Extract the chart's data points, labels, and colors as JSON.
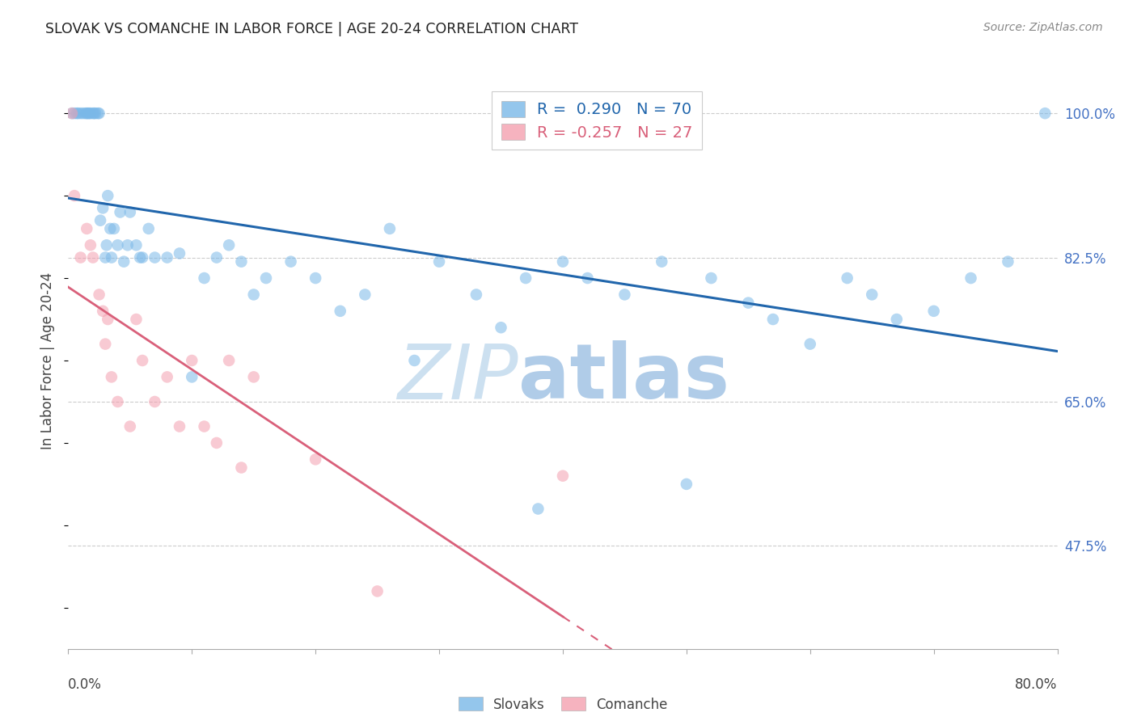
{
  "title": "SLOVAK VS COMANCHE IN LABOR FORCE | AGE 20-24 CORRELATION CHART",
  "source": "Source: ZipAtlas.com",
  "ylabel": "In Labor Force | Age 20-24",
  "yticks": [
    47.5,
    65.0,
    82.5,
    100.0
  ],
  "legend_blue_R": "0.290",
  "legend_blue_N": "70",
  "legend_pink_R": "-0.257",
  "legend_pink_N": "27",
  "legend_label_blue": "Slovaks",
  "legend_label_pink": "Comanche",
  "blue_color": "#7ab8e8",
  "pink_color": "#f4a0b0",
  "blue_line_color": "#2166ac",
  "pink_line_color": "#d9607a",
  "background_color": "#ffffff",
  "xmin": 0.0,
  "xmax": 80.0,
  "ymin": 35.0,
  "ymax": 105.0,
  "blue_x": [
    0.3,
    0.5,
    0.7,
    0.8,
    1.0,
    1.2,
    1.4,
    1.5,
    1.6,
    1.7,
    1.8,
    2.0,
    2.1,
    2.2,
    2.4,
    2.5,
    2.6,
    2.8,
    3.0,
    3.1,
    3.2,
    3.4,
    3.5,
    3.7,
    4.0,
    4.2,
    4.5,
    4.8,
    5.0,
    5.5,
    5.8,
    6.0,
    6.5,
    7.0,
    8.0,
    9.0,
    10.0,
    11.0,
    12.0,
    13.0,
    14.0,
    15.0,
    16.0,
    18.0,
    20.0,
    22.0,
    24.0,
    26.0,
    28.0,
    30.0,
    33.0,
    35.0,
    37.0,
    38.0,
    40.0,
    42.0,
    45.0,
    48.0,
    50.0,
    52.0,
    55.0,
    57.0,
    60.0,
    63.0,
    65.0,
    67.0,
    70.0,
    73.0,
    76.0,
    79.0
  ],
  "blue_y": [
    100.0,
    100.0,
    100.0,
    100.0,
    100.0,
    100.0,
    100.0,
    100.0,
    100.0,
    100.0,
    100.0,
    100.0,
    100.0,
    100.0,
    100.0,
    100.0,
    87.0,
    88.5,
    82.5,
    84.0,
    90.0,
    86.0,
    82.5,
    86.0,
    84.0,
    88.0,
    82.0,
    84.0,
    88.0,
    84.0,
    82.5,
    82.5,
    86.0,
    82.5,
    82.5,
    83.0,
    68.0,
    80.0,
    82.5,
    84.0,
    82.0,
    78.0,
    80.0,
    82.0,
    80.0,
    76.0,
    78.0,
    86.0,
    70.0,
    82.0,
    78.0,
    74.0,
    80.0,
    52.0,
    82.0,
    80.0,
    78.0,
    82.0,
    55.0,
    80.0,
    77.0,
    75.0,
    72.0,
    80.0,
    78.0,
    75.0,
    76.0,
    80.0,
    82.0,
    100.0
  ],
  "pink_x": [
    0.3,
    0.5,
    1.0,
    1.5,
    1.8,
    2.0,
    2.5,
    2.8,
    3.0,
    3.2,
    3.5,
    4.0,
    5.0,
    5.5,
    6.0,
    7.0,
    8.0,
    9.0,
    10.0,
    11.0,
    12.0,
    13.0,
    14.0,
    15.0,
    20.0,
    25.0,
    40.0
  ],
  "pink_y": [
    100.0,
    90.0,
    82.5,
    86.0,
    84.0,
    82.5,
    78.0,
    76.0,
    72.0,
    75.0,
    68.0,
    65.0,
    62.0,
    75.0,
    70.0,
    65.0,
    68.0,
    62.0,
    70.0,
    62.0,
    60.0,
    70.0,
    57.0,
    68.0,
    58.0,
    42.0,
    56.0
  ]
}
